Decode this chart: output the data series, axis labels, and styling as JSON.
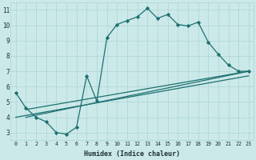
{
  "xlabel": "Humidex (Indice chaleur)",
  "xlim": [
    -0.5,
    23.5
  ],
  "ylim": [
    2.5,
    11.5
  ],
  "xticks": [
    0,
    1,
    2,
    3,
    4,
    5,
    6,
    7,
    8,
    9,
    10,
    11,
    12,
    13,
    14,
    15,
    16,
    17,
    18,
    19,
    20,
    21,
    22,
    23
  ],
  "yticks": [
    3,
    4,
    5,
    6,
    7,
    8,
    9,
    10,
    11
  ],
  "bg_color": "#cce9ea",
  "grid_color": "#aad4d5",
  "line_color": "#1e7070",
  "line1_x": [
    0,
    1,
    2,
    3,
    4,
    5,
    6,
    7,
    8,
    9,
    10,
    11,
    12,
    13,
    14,
    15,
    16,
    17,
    18,
    19,
    20,
    21,
    22,
    23
  ],
  "line1_y": [
    5.6,
    4.6,
    4.0,
    3.7,
    3.0,
    2.9,
    3.35,
    6.7,
    5.05,
    9.2,
    10.05,
    10.3,
    10.55,
    11.1,
    10.45,
    10.7,
    10.05,
    9.95,
    10.2,
    8.9,
    8.1,
    7.4,
    7.0,
    7.0
  ],
  "line2_x": [
    1,
    23
  ],
  "line2_y": [
    4.5,
    7.0
  ],
  "line3_x": [
    1,
    23
  ],
  "line3_y": [
    4.0,
    7.0
  ],
  "line4_x": [
    0,
    23
  ],
  "line4_y": [
    4.0,
    6.7
  ]
}
